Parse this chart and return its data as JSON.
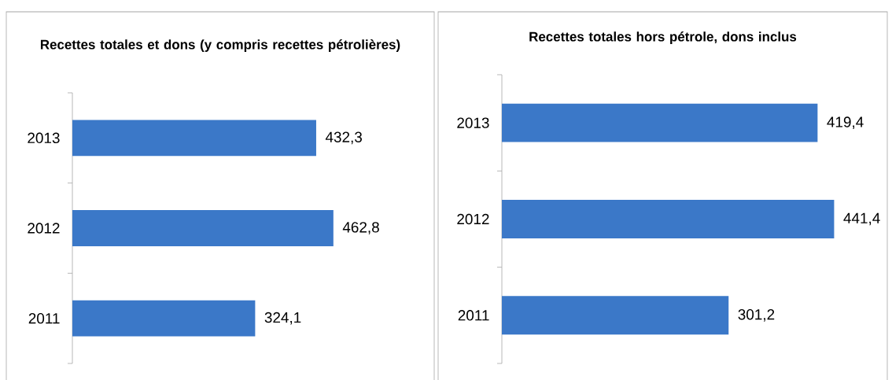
{
  "chart_data": [
    {
      "type": "bar",
      "orientation": "horizontal",
      "title": "Recettes totales et dons (y compris recettes pétrolières)",
      "categories": [
        "2013",
        "2012",
        "2011"
      ],
      "values": [
        432.3,
        462.8,
        324.1
      ],
      "value_labels": [
        "432,3",
        "462,8",
        "324,1"
      ],
      "color": "#3b78c8",
      "tick_labels": "y"
    },
    {
      "type": "bar",
      "orientation": "horizontal",
      "title": "Recettes totales hors pétrole, dons inclus",
      "categories": [
        "2013",
        "2012",
        "2011"
      ],
      "values": [
        419.4,
        441.4,
        301.2
      ],
      "value_labels": [
        "419,4",
        "441,4",
        "301,2"
      ],
      "color": "#3b78c8",
      "tick_labels": "y"
    }
  ]
}
